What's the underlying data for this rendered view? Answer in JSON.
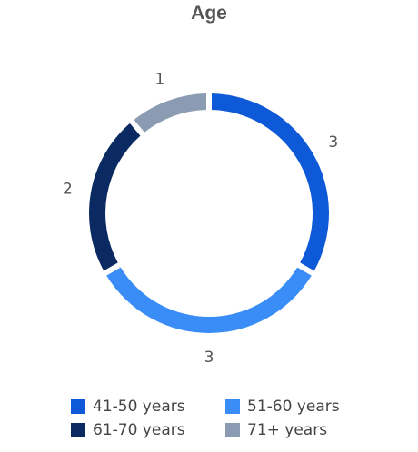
{
  "chart_data": {
    "type": "pie",
    "title": "Age",
    "categories": [
      "41-50 years",
      "51-60 years",
      "61-70 years",
      "71+ years"
    ],
    "values": [
      3,
      3,
      2,
      1
    ],
    "colors": [
      "#0E59D7",
      "#3A8CF7",
      "#0B2A62",
      "#8A9BB2"
    ],
    "data_labels": [
      "3",
      "3",
      "2",
      "1"
    ],
    "donut": true,
    "legend_position": "bottom"
  }
}
